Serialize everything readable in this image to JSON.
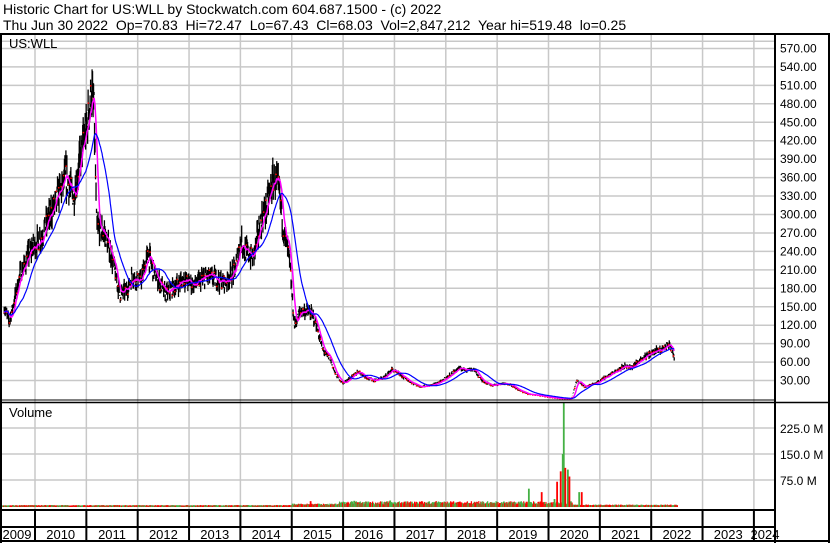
{
  "header": {
    "title": "Historic Chart for US:WLL by Stockwatch.com 604.687.1500 - (c) 2022",
    "quote_line": "Thu Jun 30 2022  Op=70.83  Hi=72.47  Lo=67.43  Cl=68.03  Vol=2,847,212  Year hi=519.48  lo=0.25"
  },
  "colors": {
    "candles": "#000000",
    "closes": "#ff0000",
    "ma_short": "#ff00ff",
    "ma_long": "#0000ff",
    "vol_up": "#44b044",
    "vol_down": "#ff0000",
    "grid": "#c8c8c8"
  },
  "chart_data": [
    {
      "type": "line",
      "title": "US:WLL",
      "ylim": [
        0,
        585
      ],
      "y_ticks": [
        "570.00",
        "540.00",
        "510.00",
        "480.00",
        "450.00",
        "420.00",
        "390.00",
        "360.00",
        "330.00",
        "300.00",
        "270.00",
        "240.00",
        "210.00",
        "180.00",
        "150.00",
        "120.00",
        "90.00",
        "60.00",
        "30.00"
      ],
      "x_ticks": [
        "2009",
        "2010",
        "2011",
        "2012",
        "2013",
        "2014",
        "2015",
        "2016",
        "2017",
        "2018",
        "2019",
        "2020",
        "2021",
        "2022",
        "2023",
        "2024"
      ],
      "grid": true,
      "series": [
        {
          "x": [
            2009.4,
            2009.5,
            2009.7,
            2009.9,
            2010.1,
            2010.3,
            2010.5,
            2010.6,
            2010.75,
            2010.9,
            2011.0,
            2011.1,
            2011.15,
            2011.2,
            2011.35,
            2011.5,
            2011.65,
            2011.8,
            2011.9,
            2012.05,
            2012.2,
            2012.35,
            2012.55,
            2012.75,
            2012.9,
            2013.1,
            2013.35,
            2013.5,
            2013.7,
            2013.9,
            2014.0,
            2014.1,
            2014.25,
            2014.4,
            2014.5,
            2014.65,
            2014.75,
            2014.85,
            2014.95,
            2015.05,
            2015.15,
            2015.3,
            2015.45,
            2015.6,
            2015.75,
            2015.85,
            2016.0,
            2016.15,
            2016.3,
            2016.45,
            2016.6,
            2016.8,
            2016.95,
            2017.1,
            2017.3,
            2017.5,
            2017.7,
            2017.9,
            2018.1,
            2018.25,
            2018.4,
            2018.55,
            2018.7,
            2018.9,
            2019.1,
            2019.25,
            2019.4,
            2019.6,
            2019.8,
            2020.0,
            2020.2,
            2020.45,
            2020.55,
            2020.7,
            2020.9,
            2021.1,
            2021.3,
            2021.5,
            2021.6,
            2021.8,
            2022.0,
            2022.2,
            2022.35,
            2022.45
          ],
          "y": [
            150,
            125,
            200,
            240,
            260,
            300,
            340,
            360,
            330,
            400,
            440,
            500,
            470,
            280,
            270,
            230,
            170,
            180,
            200,
            190,
            235,
            200,
            170,
            185,
            195,
            185,
            200,
            195,
            190,
            210,
            260,
            240,
            230,
            290,
            310,
            360,
            340,
            270,
            230,
            120,
            140,
            145,
            130,
            80,
            65,
            40,
            25,
            35,
            45,
            35,
            30,
            35,
            48,
            40,
            28,
            20,
            22,
            28,
            40,
            50,
            48,
            48,
            30,
            22,
            25,
            24,
            15,
            8,
            6,
            3,
            1,
            0.5,
            30,
            20,
            25,
            35,
            45,
            55,
            50,
            65,
            75,
            80,
            90,
            68
          ]
        }
      ]
    },
    {
      "type": "bar",
      "title": "Volume",
      "y_ticks": [
        "225.0 M",
        "150.0 M",
        "75.0 M"
      ],
      "ylim": [
        0,
        280
      ],
      "unit": "M",
      "spikes": [
        {
          "x": 2015.35,
          "value": 14,
          "dir": "down"
        },
        {
          "x": 2016.2,
          "value": 15,
          "dir": "up"
        },
        {
          "x": 2016.9,
          "value": 16,
          "dir": "up"
        },
        {
          "x": 2019.6,
          "value": 50,
          "dir": "up"
        },
        {
          "x": 2019.85,
          "value": 40,
          "dir": "down"
        },
        {
          "x": 2020.1,
          "value": 20,
          "dir": "up"
        },
        {
          "x": 2020.15,
          "value": 70,
          "dir": "down"
        },
        {
          "x": 2020.22,
          "value": 100,
          "dir": "down"
        },
        {
          "x": 2020.26,
          "value": 150,
          "dir": "up"
        },
        {
          "x": 2020.28,
          "value": 300,
          "dir": "up"
        },
        {
          "x": 2020.31,
          "value": 110,
          "dir": "down"
        },
        {
          "x": 2020.36,
          "value": 105,
          "dir": "up"
        },
        {
          "x": 2020.39,
          "value": 85,
          "dir": "down"
        },
        {
          "x": 2020.58,
          "value": 40,
          "dir": "up"
        },
        {
          "x": 2020.63,
          "value": 40,
          "dir": "down"
        }
      ],
      "base_levels": [
        {
          "from": 2009.3,
          "to": 2015.0,
          "value": 2
        },
        {
          "from": 2015.0,
          "to": 2015.9,
          "value": 5
        },
        {
          "from": 2015.9,
          "to": 2020.45,
          "value": 10
        },
        {
          "from": 2020.45,
          "to": 2022.5,
          "value": 3
        }
      ]
    }
  ]
}
